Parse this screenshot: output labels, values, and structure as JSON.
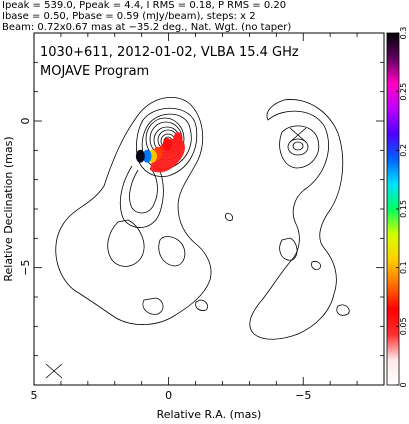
{
  "header": {
    "line1": "Ipeak = 539.0, Ppeak = 4.4, I RMS = 0.18, P RMS = 0.20",
    "line2": "Ibase = 0.50, Pbase = 0.59 (mJy/beam), steps: x 2",
    "line3": "Beam: 0.72x0.67 mas at −35.2 deg., Nat. Wgt. (no taper)"
  },
  "chart_data": {
    "type": "contour",
    "title": "1030+611, 2012-01-02, VLBA 15.4 GHz",
    "subtitle": "MOJAVE Program",
    "xlabel": "Relative R.A. (mas)",
    "ylabel": "Relative Declination (mas)",
    "xlim": [
      5,
      -8
    ],
    "ylim": [
      -9,
      3
    ],
    "x_ticks": [
      {
        "value": 5,
        "label": "5"
      },
      {
        "value": 0,
        "label": "0"
      },
      {
        "value": -5,
        "label": "−5"
      }
    ],
    "y_ticks": [
      {
        "value": 0,
        "label": "0"
      },
      {
        "value": -5,
        "label": "−5"
      }
    ],
    "colorbar": {
      "min": 0,
      "max": 0.3,
      "ticks": [
        0,
        0.05,
        0.1,
        0.15,
        0.2,
        0.25,
        0.3
      ],
      "tick_labels": [
        "0",
        "0.05",
        "0.1",
        "0.15",
        "0.2",
        "0.25",
        "0.3"
      ],
      "colors": [
        "#ffffff",
        "#ffe8e8",
        "#ff3030",
        "#ff0000",
        "#ff7000",
        "#ffd000",
        "#d0ff00",
        "#00ff60",
        "#00e0ff",
        "#0060ff",
        "#5000ff",
        "#c000ff",
        "#ff00c0",
        "#600060",
        "#000000"
      ]
    },
    "contour_levels_total": [
      "Ibase = 0.50 mJy/beam",
      "steps: x 2"
    ],
    "core": {
      "x": 0,
      "y": 0
    },
    "polarized_patch": [
      {
        "x": -0.35,
        "y": -0.6,
        "value": 0.05
      },
      {
        "x": 0.05,
        "y": -0.8,
        "value": 0.08
      },
      {
        "x": 0.4,
        "y": -1.1,
        "value": 0.12
      },
      {
        "x": 0.6,
        "y": -1.2,
        "value": 0.17
      },
      {
        "x": 0.8,
        "y": -1.2,
        "value": 0.22
      },
      {
        "x": 1.05,
        "y": -1.2,
        "value": 0.28
      }
    ],
    "legend_beam": "Beam ellipse at lower left"
  }
}
